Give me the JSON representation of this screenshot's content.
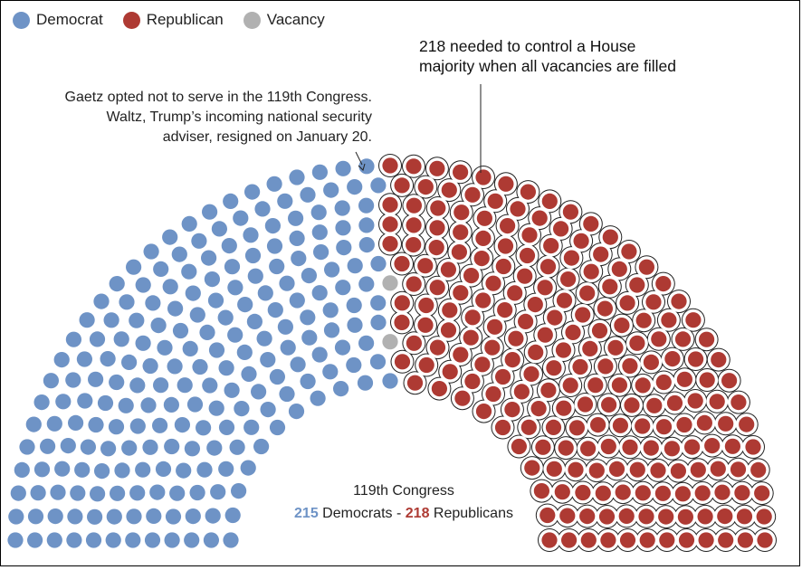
{
  "chart_data": {
    "type": "parliament",
    "legend": [
      {
        "key": "dem",
        "label": "Democrat",
        "color": "#6e93c6"
      },
      {
        "key": "rep",
        "label": "Republican",
        "color": "#ae3a33"
      },
      {
        "key": "vac",
        "label": "Vacancy",
        "color": "#b1b1b1"
      }
    ],
    "seats": {
      "dem": 215,
      "rep": 218,
      "vac": 2
    },
    "annotations": {
      "vacancy_note": [
        "Gaetz opted not to serve in the 119th Congress.",
        "Waltz, Trump’s incoming national security",
        "adviser, resigned on January 20."
      ],
      "majority_note": [
        "218 needed to control a House",
        "majority when all vacancies are filled"
      ]
    },
    "summary": {
      "title": "119th Congress",
      "dem_count": "215",
      "dem_label": "Democrats",
      "separator": "-",
      "rep_count": "218",
      "rep_label": "Republicans"
    }
  }
}
